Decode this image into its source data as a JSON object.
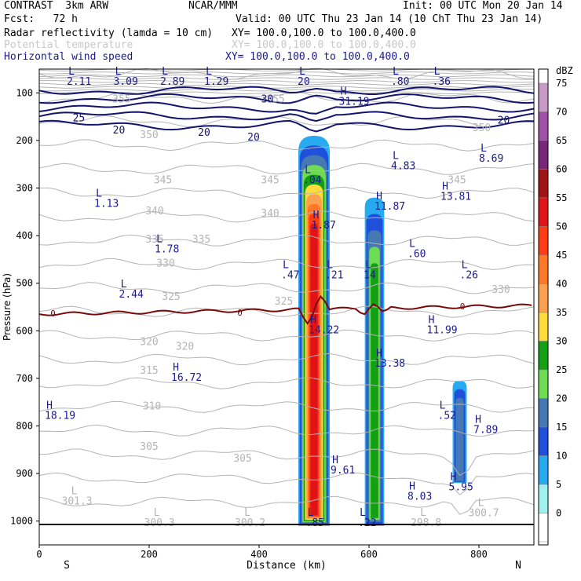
{
  "header": {
    "model": "CONTRAST  3km ARW",
    "org": "NCAR/MMM",
    "init": "Init: 00 UTC Mon 20 Jan 14",
    "fcst": "Fcst:   72 h",
    "valid": "Valid: 00 UTC Thu 23 Jan 14 (10 ChT Thu 23 Jan 14)"
  },
  "fields": [
    {
      "name": "Radar reflectivity (lamda = 10 cm)",
      "xy": "XY= 100.0,100.0 to 100.0,400.0",
      "color": "#000000"
    },
    {
      "name": "Potential temperature",
      "xy": "XY= 100.0,100.0 to 100.0,400.0",
      "color": "#c8c8c8"
    },
    {
      "name": "Horizontal wind speed",
      "xy": "XY= 100.0,100.0 to 100.0,400.0",
      "color": "#1a1a8c"
    }
  ],
  "chart_data": {
    "type": "cross-section",
    "xlabel": "Distance (km)",
    "ylabel": "Pressure (hPa)",
    "xlim": [
      0,
      900
    ],
    "ylim": [
      1050,
      50
    ],
    "xticks": [
      0,
      200,
      400,
      600,
      800
    ],
    "yticks": [
      100,
      200,
      300,
      400,
      500,
      600,
      700,
      800,
      900,
      1000
    ],
    "x_end_labels": [
      "S",
      "N"
    ],
    "colorbar": {
      "unit": "dBZ",
      "levels": [
        75,
        70,
        65,
        60,
        55,
        50,
        45,
        40,
        35,
        30,
        25,
        20,
        15,
        10,
        5,
        0
      ],
      "colors": [
        "#c89ac8",
        "#a050a8",
        "#782878",
        "#a01418",
        "#e01418",
        "#ff3c14",
        "#ff7828",
        "#ffa050",
        "#ffdc3c",
        "#14a014",
        "#6edc50",
        "#4678b4",
        "#1e50dc",
        "#28aaf0",
        "#a0f0f0",
        "#ffffff"
      ]
    },
    "theta_labels": [
      {
        "text": "355",
        "x": 150,
        "p": 120
      },
      {
        "text": "355",
        "x": 430,
        "p": 120
      },
      {
        "text": "350",
        "x": 200,
        "p": 195
      },
      {
        "text": "350",
        "x": 805,
        "p": 180
      },
      {
        "text": "345",
        "x": 225,
        "p": 290
      },
      {
        "text": "345",
        "x": 420,
        "p": 290
      },
      {
        "text": "345",
        "x": 760,
        "p": 290
      },
      {
        "text": "340",
        "x": 210,
        "p": 355
      },
      {
        "text": "340",
        "x": 420,
        "p": 360
      },
      {
        "text": "335",
        "x": 210,
        "p": 415
      },
      {
        "text": "335",
        "x": 295,
        "p": 415
      },
      {
        "text": "330",
        "x": 230,
        "p": 465
      },
      {
        "text": "330",
        "x": 840,
        "p": 520
      },
      {
        "text": "325",
        "x": 240,
        "p": 535
      },
      {
        "text": "325",
        "x": 445,
        "p": 545
      },
      {
        "text": "320",
        "x": 200,
        "p": 630
      },
      {
        "text": "320",
        "x": 265,
        "p": 640
      },
      {
        "text": "315",
        "x": 200,
        "p": 690
      },
      {
        "text": "310",
        "x": 205,
        "p": 765
      },
      {
        "text": "305",
        "x": 200,
        "p": 850
      },
      {
        "text": "305",
        "x": 370,
        "p": 875
      }
    ],
    "wind_contour_labels": [
      {
        "text": "30",
        "x": 415,
        "p": 120
      },
      {
        "text": "25",
        "x": 72,
        "p": 160
      },
      {
        "text": "20",
        "x": 145,
        "p": 185
      },
      {
        "text": "20",
        "x": 300,
        "p": 190
      },
      {
        "text": "20",
        "x": 390,
        "p": 200
      },
      {
        "text": "20",
        "x": 845,
        "p": 165
      }
    ],
    "zero_isotherm_labels": [
      {
        "text": "0",
        "x": 25,
        "p": 570
      },
      {
        "text": "0",
        "x": 365,
        "p": 568
      },
      {
        "text": "0",
        "x": 770,
        "p": 555
      }
    ],
    "extrema_wind": [
      {
        "type": "L",
        "value": "2.11",
        "x": 50,
        "p": 83
      },
      {
        "type": "L",
        "value": "3.09",
        "x": 135,
        "p": 83
      },
      {
        "type": "L",
        "value": "2.89",
        "x": 220,
        "p": 83
      },
      {
        "type": "L",
        "value": "1.29",
        "x": 300,
        "p": 83
      },
      {
        "type": "L",
        "value": "20",
        "x": 470,
        "p": 83
      },
      {
        "type": "L",
        "value": ".80",
        "x": 640,
        "p": 83
      },
      {
        "type": "L",
        "value": ".36",
        "x": 715,
        "p": 83
      },
      {
        "type": "H",
        "value": "31.19",
        "x": 545,
        "p": 125
      },
      {
        "type": "L",
        "value": "4.83",
        "x": 640,
        "p": 260
      },
      {
        "type": "L",
        "value": "8.69",
        "x": 800,
        "p": 245
      },
      {
        "type": "L",
        "value": ".04",
        "x": 480,
        "p": 290
      },
      {
        "type": "L",
        "value": "1.13",
        "x": 100,
        "p": 340
      },
      {
        "type": "H",
        "value": "11.87",
        "x": 610,
        "p": 345
      },
      {
        "type": "H",
        "value": "13.81",
        "x": 730,
        "p": 325
      },
      {
        "type": "H",
        "value": "1.87",
        "x": 495,
        "p": 385
      },
      {
        "type": "L",
        "value": "1.78",
        "x": 210,
        "p": 435
      },
      {
        "type": "L",
        "value": ".60",
        "x": 670,
        "p": 445
      },
      {
        "type": "L",
        "value": ".47",
        "x": 440,
        "p": 490
      },
      {
        "type": "L",
        "value": ".21",
        "x": 520,
        "p": 490
      },
      {
        "type": "L",
        "value": "14",
        "x": 590,
        "p": 490
      },
      {
        "type": "L",
        "value": ".26",
        "x": 765,
        "p": 490
      },
      {
        "type": "L",
        "value": "2.44",
        "x": 145,
        "p": 530
      },
      {
        "type": "H",
        "value": "14.22",
        "x": 490,
        "p": 605
      },
      {
        "type": "H",
        "value": "11.99",
        "x": 705,
        "p": 605
      },
      {
        "type": "H",
        "value": "13.38",
        "x": 610,
        "p": 675
      },
      {
        "type": "H",
        "value": "16.72",
        "x": 240,
        "p": 705
      },
      {
        "type": "H",
        "value": "18.19",
        "x": 10,
        "p": 785
      },
      {
        "type": "L",
        "value": ".52",
        "x": 725,
        "p": 785
      },
      {
        "type": "H",
        "value": "7.89",
        "x": 790,
        "p": 815
      },
      {
        "type": "H",
        "value": "9.61",
        "x": 530,
        "p": 900
      },
      {
        "type": "H",
        "value": "8.03",
        "x": 670,
        "p": 955
      },
      {
        "type": "H",
        "value": "5.95",
        "x": 745,
        "p": 935
      },
      {
        "type": "L",
        "value": ".85",
        "x": 485,
        "p": 1010
      },
      {
        "type": "L",
        "value": ".22",
        "x": 580,
        "p": 1010
      }
    ],
    "extrema_theta": [
      {
        "type": "L",
        "value": "301.3",
        "x": 55,
        "p": 965
      },
      {
        "type": "L",
        "value": "300.3",
        "x": 205,
        "p": 1010
      },
      {
        "type": "L",
        "value": "300.2",
        "x": 370,
        "p": 1010
      },
      {
        "type": "L",
        "value": "298.8",
        "x": 690,
        "p": 1010
      },
      {
        "type": "L",
        "value": "300.7",
        "x": 795,
        "p": 990
      }
    ],
    "reflectivity_cells": [
      {
        "x_center": 500,
        "p_top": 190,
        "p_bottom": 1010,
        "max_dbz": 55
      },
      {
        "x_center": 610,
        "p_top": 320,
        "p_bottom": 1010,
        "max_dbz": 30
      },
      {
        "x_center": 765,
        "p_top": 705,
        "p_bottom": 920,
        "max_dbz": 20
      }
    ]
  }
}
